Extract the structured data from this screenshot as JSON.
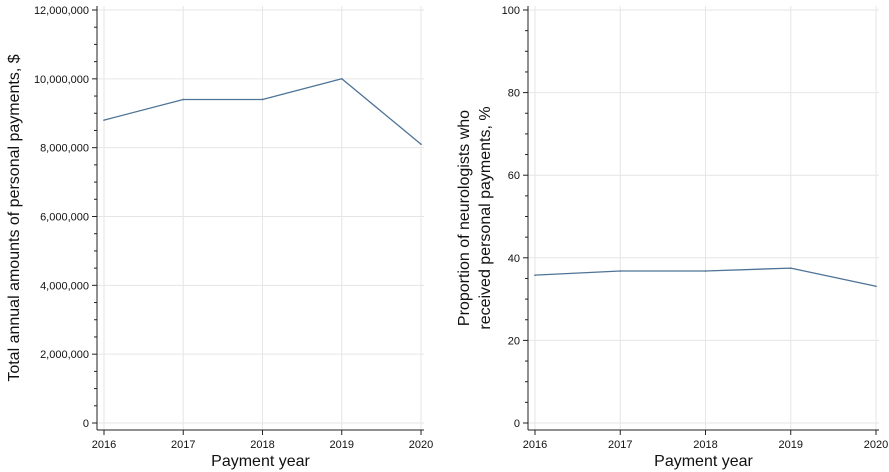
{
  "colors": {
    "line": "#4e7397",
    "grid": "#e6e6e6",
    "axis": "#222222",
    "background": "#ffffff"
  },
  "chart_data": [
    {
      "type": "line",
      "xlabel": "Payment year",
      "ylabel": "Total annual amounts of personal payments, $",
      "x": [
        2016,
        2017,
        2018,
        2019,
        2020
      ],
      "xticks": [
        "2016",
        "2017",
        "2018",
        "2019",
        "2020"
      ],
      "series": [
        {
          "values": [
            8800000,
            9400000,
            9400000,
            10000000,
            8100000
          ]
        }
      ],
      "ylim": [
        0,
        12000000
      ],
      "yticks": [
        0,
        2000000,
        4000000,
        6000000,
        8000000,
        10000000,
        12000000
      ],
      "ytick_labels": [
        "0",
        "2,000,000",
        "4,000,000",
        "6,000,000",
        "8,000,000",
        "10,000,000",
        "12,000,000"
      ],
      "minor_y_step": 500000,
      "grid": true
    },
    {
      "type": "line",
      "xlabel": "Payment year",
      "ylabel": [
        "Proportion of neurologists who",
        "received personal payments, %"
      ],
      "x": [
        2016,
        2017,
        2018,
        2019,
        2020
      ],
      "xticks": [
        "2016",
        "2017",
        "2018",
        "2019",
        "2020"
      ],
      "series": [
        {
          "values": [
            35.8,
            36.8,
            36.8,
            37.5,
            33.1
          ]
        }
      ],
      "ylim": [
        0,
        100
      ],
      "yticks": [
        0,
        20,
        40,
        60,
        80,
        100
      ],
      "ytick_labels": [
        "0",
        "20",
        "40",
        "60",
        "80",
        "100"
      ],
      "minor_y_step": 5,
      "grid": true
    }
  ]
}
